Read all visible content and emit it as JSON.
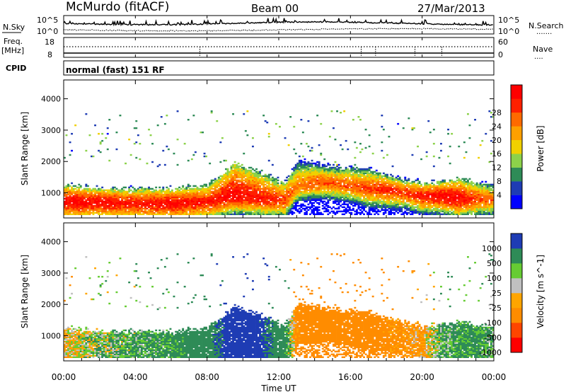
{
  "header": {
    "station": "McMurdo (fitACF)",
    "beam": "Beam 00",
    "date": "27/Mar/2013"
  },
  "noise_panel": {
    "left_label": "N.Sky",
    "right_label": "N.Search",
    "right_style": ".......",
    "ticks": [
      "10^5",
      "10^0"
    ]
  },
  "freq_panel": {
    "left_label_1": "Freq.",
    "left_label_2": "[MHz]",
    "left_ticks": [
      "18",
      "8"
    ],
    "right_ticks": [
      "60",
      "0"
    ],
    "right_label": "Nave",
    "right_style": "....",
    "cpid_label": "CPID",
    "cpid_text": "normal (fast) 151 RF"
  },
  "colors": {
    "power": [
      "#0000ff",
      "#1e3cb4",
      "#2e8b57",
      "#8cd24a",
      "#f0d000",
      "#ffa000",
      "#ff6a00",
      "#ff2000",
      "#ff0000"
    ],
    "velocity": [
      "#ff0000",
      "#ff4500",
      "#ff8c00",
      "#ffa500",
      "#c0c0c0",
      "#66cc33",
      "#2e8b57",
      "#1e3cb4"
    ]
  },
  "chart_data": [
    {
      "type": "heatmap",
      "title": "",
      "xlabel": "",
      "ylabel": "Slant Range [km]",
      "yticks": [
        "1000",
        "2000",
        "3000",
        "4000"
      ],
      "ylim": [
        200,
        4600
      ],
      "xlim": [
        0,
        24
      ],
      "colorbar_label": "Power [dB]",
      "colorbar_ticks": [
        "4",
        "8",
        "12",
        "16",
        "20",
        "24",
        "28"
      ],
      "zlim": [
        0,
        32
      ],
      "layer_profile": {
        "x_hours": [
          0,
          2,
          4,
          6,
          8,
          9.5,
          11,
          12.3,
          13,
          14,
          15,
          16,
          17,
          18,
          19,
          20,
          21,
          22,
          23,
          24
        ],
        "center_km": [
          700,
          700,
          650,
          650,
          700,
          900,
          800,
          750,
          1200,
          1300,
          1300,
          1200,
          1100,
          1100,
          1000,
          900,
          900,
          800,
          800,
          800
        ],
        "top_km": [
          1200,
          1100,
          1100,
          1100,
          1200,
          1900,
          1600,
          1300,
          2000,
          1900,
          1800,
          1800,
          1700,
          1500,
          1400,
          1300,
          1300,
          1400,
          1300,
          1200
        ],
        "peak_power_db": [
          30,
          30,
          28,
          30,
          28,
          30,
          28,
          26,
          22,
          24,
          24,
          24,
          26,
          28,
          26,
          28,
          30,
          30,
          26,
          24
        ]
      }
    },
    {
      "type": "heatmap",
      "title": "",
      "xlabel": "Time UT",
      "ylabel": "Slant Range [km]",
      "yticks": [
        "1000",
        "2000",
        "3000",
        "4000"
      ],
      "ylim": [
        200,
        4600
      ],
      "xlim": [
        0,
        24
      ],
      "xticks": [
        "00:00",
        "04:00",
        "08:00",
        "12:00",
        "16:00",
        "20:00",
        "00:00"
      ],
      "colorbar_label": "Velocity [m s^-1]",
      "colorbar_ticks": [
        "1000",
        "500",
        "100",
        "25",
        "-25",
        "-100",
        "-500",
        "-1000"
      ],
      "layer_profile": {
        "x_hours": [
          0,
          2,
          4,
          6,
          8,
          9.5,
          11,
          12.3,
          13,
          14,
          15,
          16,
          17,
          18,
          19,
          20,
          21,
          22,
          23,
          24
        ],
        "velocity_ms": [
          -50,
          50,
          100,
          150,
          300,
          800,
          600,
          200,
          -200,
          -300,
          -300,
          -350,
          -300,
          -200,
          -150,
          -100,
          100,
          150,
          150,
          100
        ]
      }
    }
  ]
}
